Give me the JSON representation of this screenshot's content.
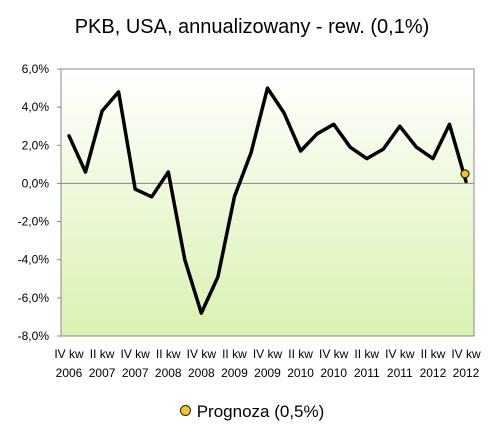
{
  "chart_data": {
    "type": "line",
    "title": "PKB, USA, annualizowany - rew. (0,1%)",
    "xlabel": "",
    "ylabel": "",
    "ylim": [
      -8,
      6
    ],
    "ytick_values": [
      6,
      4,
      2,
      0,
      -2,
      -4,
      -6,
      -8
    ],
    "ytick_labels": [
      "6,0%",
      "4,0%",
      "2,0%",
      "0,0%",
      "-2,0%",
      "-4,0%",
      "-6,0%",
      "-8,0%"
    ],
    "x_labels": [
      {
        "q": "IV kw",
        "year": "2006"
      },
      {
        "q": "II kw",
        "year": "2007"
      },
      {
        "q": "IV kw",
        "year": "2007"
      },
      {
        "q": "II kw",
        "year": "2008"
      },
      {
        "q": "IV kw",
        "year": "2008"
      },
      {
        "q": "II kw",
        "year": "2009"
      },
      {
        "q": "IV kw",
        "year": "2009"
      },
      {
        "q": "II kw",
        "year": "2010"
      },
      {
        "q": "IV kw",
        "year": "2010"
      },
      {
        "q": "II kw",
        "year": "2011"
      },
      {
        "q": "IV kw",
        "year": "2011"
      },
      {
        "q": "II kw",
        "year": "2012"
      },
      {
        "q": "IV kw",
        "year": "2012"
      }
    ],
    "series": [
      {
        "values": [
          2.5,
          0.6,
          3.8,
          4.8,
          -0.3,
          -0.7,
          0.6,
          -4.0,
          -6.8,
          -4.9,
          -0.7,
          1.6,
          5.0,
          3.7,
          1.7,
          2.6,
          3.1,
          1.9,
          1.3,
          1.8,
          3.0,
          1.9,
          1.3,
          3.1,
          0.1
        ],
        "color": "#000000"
      }
    ],
    "forecast": {
      "label": "Prognoza (0,5%)",
      "value": 0.5,
      "color": "#f5c518"
    },
    "plot_background": [
      "#ffffff",
      "#d9f2b0"
    ],
    "grid": false,
    "legend_position": "bottom"
  }
}
